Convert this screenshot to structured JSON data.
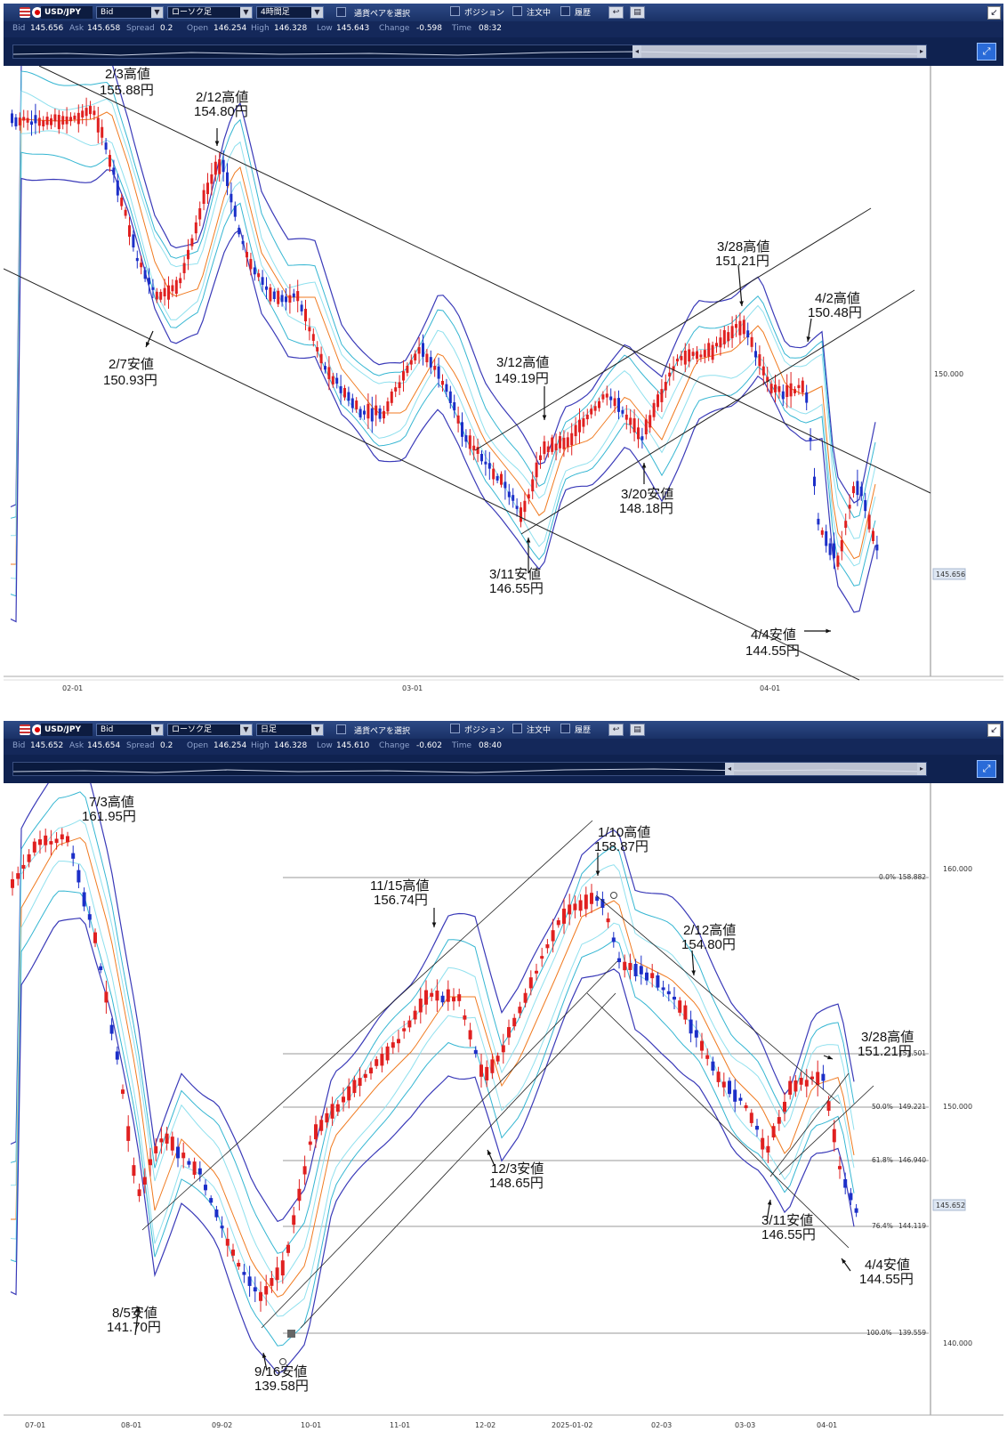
{
  "chart_top": {
    "toolbar": {
      "pair": "USD/JPY",
      "price_type": "Bid",
      "chart_type": "ローソク足",
      "timeframe": "4時間足",
      "select_pair": "通貨ペアを選択",
      "position": "ポジション",
      "orders": "注文中",
      "history": "履歴"
    },
    "quote": {
      "bid_label": "Bid",
      "bid": "145.656",
      "ask_label": "Ask",
      "ask": "145.658",
      "spread_label": "Spread",
      "spread": "0.2",
      "open_label": "Open",
      "open": "146.254",
      "high_label": "High",
      "high": "146.328",
      "low_label": "Low",
      "low": "145.643",
      "change_label": "Change",
      "change": "-0.598",
      "time_label": "Time",
      "time": "08:32"
    },
    "axis": {
      "y_label": "150.000",
      "current_price": "145.656",
      "x_labels": [
        "02-01",
        "03-01",
        "04-01"
      ]
    },
    "annotations": [
      {
        "label": "2/3高値",
        "price": "155.88円"
      },
      {
        "label": "2/12高値",
        "price": "154.80円"
      },
      {
        "label": "2/7安値",
        "price": "150.93円"
      },
      {
        "label": "3/12高値",
        "price": "149.19円"
      },
      {
        "label": "3/11安値",
        "price": "146.55円"
      },
      {
        "label": "3/20安値",
        "price": "148.18円"
      },
      {
        "label": "3/28高値",
        "price": "151.21円"
      },
      {
        "label": "4/2高値",
        "price": "150.48円"
      },
      {
        "label": "4/4安値",
        "price": "144.55円"
      }
    ]
  },
  "chart_bottom": {
    "toolbar": {
      "pair": "USD/JPY",
      "price_type": "Bid",
      "chart_type": "ローソク足",
      "timeframe": "日足",
      "select_pair": "通貨ペアを選択",
      "position": "ポジション",
      "orders": "注文中",
      "history": "履歴"
    },
    "quote": {
      "bid_label": "Bid",
      "bid": "145.652",
      "ask_label": "Ask",
      "ask": "145.654",
      "spread_label": "Spread",
      "spread": "0.2",
      "open_label": "Open",
      "open": "146.254",
      "high_label": "High",
      "high": "146.328",
      "low_label": "Low",
      "low": "145.610",
      "change_label": "Change",
      "change": "-0.602",
      "time_label": "Time",
      "time": "08:40"
    },
    "axis": {
      "y_labels": [
        "160.000",
        "150.000",
        "140.000"
      ],
      "current_price": "145.652",
      "x_labels": [
        "07-01",
        "08-01",
        "09-02",
        "10-01",
        "11-01",
        "12-02",
        "2025-01-02",
        "02-03",
        "03-03",
        "04-01"
      ]
    },
    "fib_levels": [
      {
        "pct": "0.0%",
        "price": "158.882"
      },
      {
        "pct": "",
        "price": "151.501"
      },
      {
        "pct": "50.0%",
        "price": "149.221"
      },
      {
        "pct": "61.8%",
        "price": "146.940"
      },
      {
        "pct": "76.4%",
        "price": "144.119"
      },
      {
        "pct": "100.0%",
        "price": "139.559"
      }
    ],
    "annotations": [
      {
        "label": "7/3高値",
        "price": "161.95円"
      },
      {
        "label": "8/5安値",
        "price": "141.70円"
      },
      {
        "label": "9/16安値",
        "price": "139.58円"
      },
      {
        "label": "11/15高値",
        "price": "156.74円"
      },
      {
        "label": "12/3安値",
        "price": "148.65円"
      },
      {
        "label": "1/10高値",
        "price": "158.87円"
      },
      {
        "label": "2/12高値",
        "price": "154.80円"
      },
      {
        "label": "3/11安値",
        "price": "146.55円"
      },
      {
        "label": "3/28高値",
        "price": "151.21円"
      },
      {
        "label": "4/4安値",
        "price": "144.55円"
      }
    ]
  },
  "colors": {
    "bull": "#e02020",
    "bear": "#1c2fc8",
    "bb_outer": "#3a3ab8",
    "bb_mid": "#35b6d2",
    "bb_inner": "#8fe0ee",
    "ma": "#f07a20",
    "toolbar": "#1a3166"
  }
}
